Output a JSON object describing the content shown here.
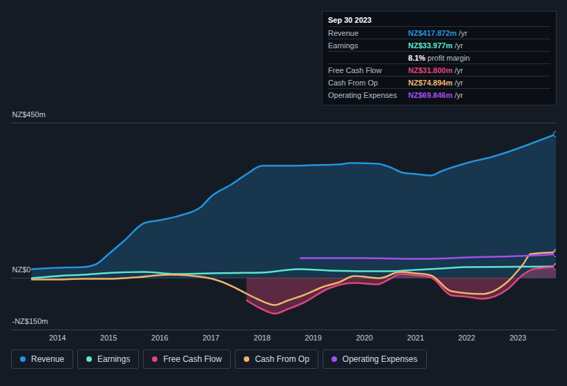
{
  "chart_data": {
    "type": "line",
    "xlim": [
      2013.1,
      2023.75
    ],
    "xticks": [
      2014,
      2015,
      2016,
      2017,
      2018,
      2019,
      2020,
      2021,
      2022,
      2023
    ],
    "ylim": [
      -150,
      450
    ],
    "yticks": [
      {
        "value": 450,
        "label": "NZ$450m"
      },
      {
        "value": 0,
        "label": "NZ$0"
      },
      {
        "value": -150,
        "label": "-NZ$150m"
      }
    ],
    "grid": true,
    "series": [
      {
        "name": "Revenue",
        "color": "#2394df",
        "type": "area",
        "x": [
          2013.5,
          2014,
          2014.5,
          2014.75,
          2015,
          2015.3,
          2015.7,
          2016,
          2016.4,
          2016.8,
          2017,
          2017.4,
          2017.7,
          2018,
          2018.5,
          2019,
          2019.5,
          2019.75,
          2020.25,
          2020.5,
          2020.75,
          2021,
          2021.3,
          2021.5,
          2022,
          2022.5,
          2022.8,
          2023.25,
          2023.75
        ],
        "values": [
          26,
          30,
          32,
          40,
          70,
          108,
          160,
          168,
          182,
          206,
          236,
          272,
          302,
          326,
          326,
          328,
          330,
          334,
          332,
          322,
          306,
          302,
          298,
          310,
          334,
          352,
          366,
          390,
          418
        ]
      },
      {
        "name": "Earnings",
        "color": "#5ee6d0",
        "type": "line",
        "x": [
          2013.5,
          2014,
          2014.5,
          2015,
          2015.7,
          2016.3,
          2017,
          2017.5,
          2018,
          2018.7,
          2019.3,
          2020,
          2020.5,
          2021,
          2021.5,
          2022,
          2023,
          2023.75
        ],
        "values": [
          0,
          6,
          10,
          15,
          18,
          12,
          14,
          15,
          16,
          26,
          22,
          20,
          20,
          24,
          28,
          32,
          33,
          34
        ]
      },
      {
        "name": "Free Cash Flow",
        "color": "#e0457b",
        "type": "area",
        "x": [
          2017.7,
          2018,
          2018.25,
          2018.5,
          2018.8,
          2019.3,
          2019.8,
          2020.25,
          2020.5,
          2020.7,
          2021,
          2021.3,
          2021.7,
          2022,
          2022.3,
          2022.8,
          2023.1,
          2023.3,
          2023.75
        ],
        "values": [
          -65,
          -90,
          -103,
          -90,
          -72,
          -30,
          -14,
          -18,
          -2,
          12,
          8,
          2,
          -50,
          -54,
          -60,
          -32,
          10,
          26,
          32
        ]
      },
      {
        "name": "Cash From Op",
        "color": "#f0b46c",
        "type": "line",
        "x": [
          2013.5,
          2014,
          2014.5,
          2015,
          2015.5,
          2016.2,
          2016.8,
          2017.2,
          2017.5,
          2017.9,
          2018.25,
          2018.5,
          2018.8,
          2019.2,
          2019.5,
          2019.8,
          2020.3,
          2020.7,
          2021,
          2021.3,
          2021.7,
          2022.3,
          2022.8,
          2023.1,
          2023.25,
          2023.75
        ],
        "values": [
          -4,
          -4,
          -2,
          -2,
          2,
          10,
          4,
          -10,
          -30,
          -60,
          -78,
          -65,
          -50,
          -25,
          -12,
          6,
          0,
          18,
          14,
          8,
          -38,
          -46,
          -10,
          40,
          70,
          75
        ]
      },
      {
        "name": "Operating Expenses",
        "color": "#a34ff0",
        "type": "line",
        "x": [
          2018.75,
          2019.5,
          2020,
          2020.5,
          2021,
          2021.5,
          2022,
          2022.5,
          2023,
          2023.5,
          2023.75
        ],
        "values": [
          58,
          58,
          58,
          57,
          56,
          57,
          60,
          62,
          64,
          67,
          70
        ]
      }
    ],
    "annotation": {
      "title": "Sep 30 2023",
      "rows": [
        {
          "label": "Revenue",
          "value": "NZ$417.872m",
          "unit": "/yr"
        },
        {
          "label": "Earnings",
          "value": "NZ$33.977m",
          "unit": "/yr"
        },
        {
          "label": "",
          "value": "8.1%",
          "unit": "profit margin"
        },
        {
          "label": "Free Cash Flow",
          "value": "NZ$31.800m",
          "unit": "/yr"
        },
        {
          "label": "Cash From Op",
          "value": "NZ$74.894m",
          "unit": "/yr"
        },
        {
          "label": "Operating Expenses",
          "value": "NZ$69.846m",
          "unit": "/yr"
        }
      ]
    }
  }
}
